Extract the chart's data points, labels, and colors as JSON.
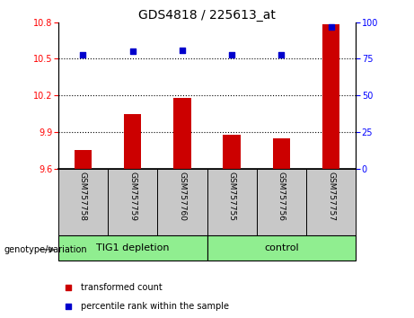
{
  "title": "GDS4818 / 225613_at",
  "samples": [
    "GSM757758",
    "GSM757759",
    "GSM757760",
    "GSM757755",
    "GSM757756",
    "GSM757757"
  ],
  "bar_values": [
    9.75,
    10.05,
    10.18,
    9.88,
    9.85,
    10.78
  ],
  "percentile_values": [
    78,
    80,
    81,
    78,
    78,
    97
  ],
  "ylim_left": [
    9.6,
    10.8
  ],
  "ylim_right": [
    0,
    100
  ],
  "yticks_left": [
    9.6,
    9.9,
    10.2,
    10.5,
    10.8
  ],
  "yticks_right": [
    0,
    25,
    50,
    75,
    100
  ],
  "hlines": [
    10.5,
    10.2,
    9.9
  ],
  "bar_color": "#cc0000",
  "dot_color": "#0000cc",
  "group1_label": "TIG1 depletion",
  "group2_label": "control",
  "group_color": "#90ee90",
  "sample_box_color": "#c8c8c8",
  "xlabel_area": "genotype/variation",
  "legend_red": "transformed count",
  "legend_blue": "percentile rank within the sample",
  "bar_width": 0.35,
  "tick_label_fontsize": 7,
  "title_fontsize": 10,
  "sample_fontsize": 6.5,
  "group_fontsize": 8,
  "legend_fontsize": 7,
  "genotype_fontsize": 7
}
